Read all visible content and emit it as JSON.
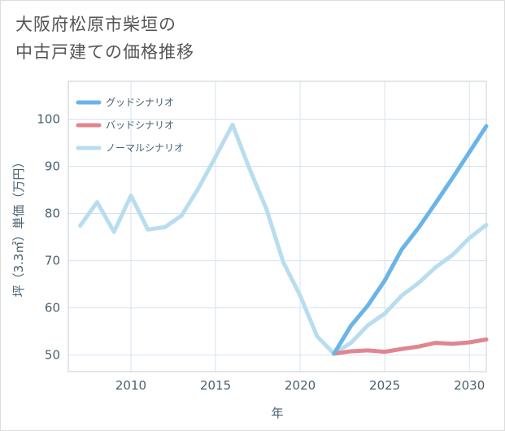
{
  "title_lines": [
    "大阪府松原市柴垣の",
    "中古戸建ての価格推移"
  ],
  "chart_data": {
    "type": "line",
    "title": "大阪府松原市柴垣の中古戸建ての価格推移",
    "xlabel": "年",
    "ylabel": "坪（3.3㎡）単価（万円）",
    "xlim": [
      2006.3,
      2031
    ],
    "ylim": [
      46.5,
      108
    ],
    "xticks": [
      2010,
      2015,
      2020,
      2025,
      2030
    ],
    "yticks": [
      50,
      60,
      70,
      80,
      90,
      100
    ],
    "grid": true,
    "legend_position": "top-left",
    "series": [
      {
        "name": "グッドシナリオ",
        "color": "#6ab4e8",
        "x": [
          2022,
          2023,
          2024,
          2025,
          2026,
          2027,
          2028,
          2029,
          2030,
          2031
        ],
        "y": [
          50.3,
          56.2,
          60.5,
          65.8,
          72.4,
          77.0,
          82.2,
          87.5,
          93.0,
          98.5
        ]
      },
      {
        "name": "バッドシナリオ",
        "color": "#e0868f",
        "x": [
          2022,
          2023,
          2024,
          2025,
          2026,
          2027,
          2028,
          2029,
          2030,
          2031
        ],
        "y": [
          50.3,
          50.8,
          51.0,
          50.7,
          51.3,
          51.8,
          52.6,
          52.4,
          52.7,
          53.3
        ]
      },
      {
        "name": "ノーマルシナリオ",
        "color": "#b8ddef",
        "x": [
          2007,
          2008,
          2009,
          2010,
          2011,
          2012,
          2013,
          2014,
          2015,
          2016,
          2017,
          2018,
          2019,
          2020,
          2021,
          2022,
          2023,
          2024,
          2025,
          2026,
          2027,
          2028,
          2029,
          2030,
          2031
        ],
        "y": [
          77.4,
          82.4,
          76.1,
          83.8,
          76.6,
          77.1,
          79.6,
          85.4,
          92.0,
          98.8,
          89.5,
          81.0,
          69.7,
          62.6,
          54.0,
          50.3,
          52.6,
          56.3,
          58.8,
          62.6,
          65.3,
          68.6,
          71.2,
          74.8,
          77.6
        ]
      }
    ]
  }
}
